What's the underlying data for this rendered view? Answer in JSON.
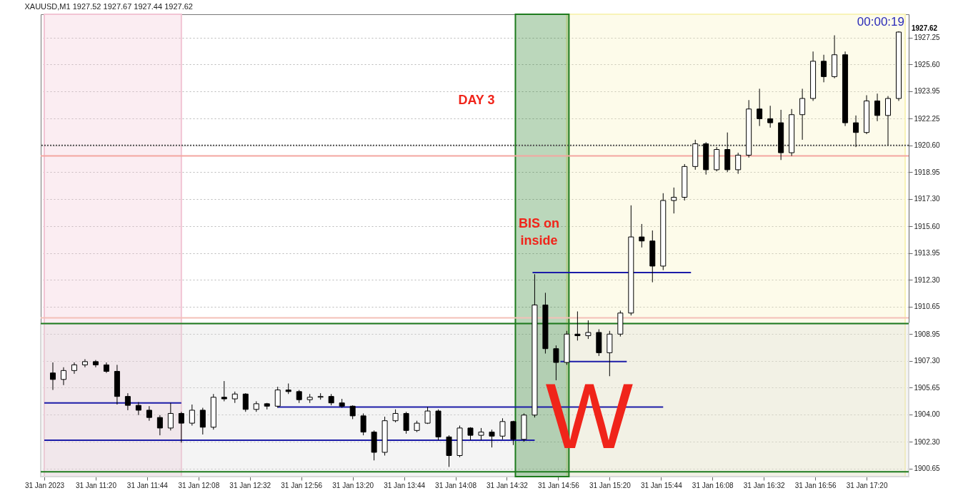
{
  "chart_data": {
    "type": "candlestick",
    "title": "XAUUSD,M1 1927.52 1927.67 1927.44 1927.62",
    "x": [
      "2023-01-31T11:00",
      "2023-01-31T11:05",
      "2023-01-31T11:10",
      "2023-01-31T11:15",
      "2023-01-31T11:20",
      "2023-01-31T11:25",
      "2023-01-31T11:30",
      "2023-01-31T11:35",
      "2023-01-31T11:40",
      "2023-01-31T11:45",
      "2023-01-31T11:50",
      "2023-01-31T11:55",
      "2023-01-31T12:00",
      "2023-01-31T12:05",
      "2023-01-31T12:10",
      "2023-01-31T12:15",
      "2023-01-31T12:20",
      "2023-01-31T12:25",
      "2023-01-31T12:30",
      "2023-01-31T12:35",
      "2023-01-31T12:40",
      "2023-01-31T12:45",
      "2023-01-31T12:50",
      "2023-01-31T12:55",
      "2023-01-31T13:00",
      "2023-01-31T13:05",
      "2023-01-31T13:10",
      "2023-01-31T13:15",
      "2023-01-31T13:20",
      "2023-01-31T13:25",
      "2023-01-31T13:30",
      "2023-01-31T13:35",
      "2023-01-31T13:40",
      "2023-01-31T13:45",
      "2023-01-31T13:50",
      "2023-01-31T13:55",
      "2023-01-31T14:00",
      "2023-01-31T14:05",
      "2023-01-31T14:10",
      "2023-01-31T14:15",
      "2023-01-31T14:20",
      "2023-01-31T14:25",
      "2023-01-31T14:30",
      "2023-01-31T14:35",
      "2023-01-31T14:40",
      "2023-01-31T14:45",
      "2023-01-31T14:50",
      "2023-01-31T14:55",
      "2023-01-31T15:00",
      "2023-01-31T15:05",
      "2023-01-31T15:10",
      "2023-01-31T15:15",
      "2023-01-31T15:20",
      "2023-01-31T15:25",
      "2023-01-31T15:30",
      "2023-01-31T15:35",
      "2023-01-31T15:40",
      "2023-01-31T15:45",
      "2023-01-31T15:50",
      "2023-01-31T15:55",
      "2023-01-31T16:00",
      "2023-01-31T16:05",
      "2023-01-31T16:10",
      "2023-01-31T16:15",
      "2023-01-31T16:20",
      "2023-01-31T16:25",
      "2023-01-31T16:30",
      "2023-01-31T16:35",
      "2023-01-31T16:40",
      "2023-01-31T16:45",
      "2023-01-31T16:50",
      "2023-01-31T16:55",
      "2023-01-31T17:00",
      "2023-01-31T17:05",
      "2023-01-31T17:10",
      "2023-01-31T17:15",
      "2023-01-31T17:20",
      "2023-01-31T17:25",
      "2023-01-31T17:30",
      "2023-01-31T17:35"
    ],
    "ohlc": [
      [
        1906.55,
        1907.2,
        1905.5,
        1906.15
      ],
      [
        1906.15,
        1906.9,
        1905.8,
        1906.7
      ],
      [
        1906.7,
        1907.2,
        1906.5,
        1907.05
      ],
      [
        1907.05,
        1907.4,
        1906.9,
        1907.25
      ],
      [
        1907.25,
        1907.35,
        1906.9,
        1907.05
      ],
      [
        1907.05,
        1907.2,
        1906.55,
        1906.65
      ],
      [
        1906.65,
        1907.05,
        1904.6,
        1905.1
      ],
      [
        1905.1,
        1905.3,
        1904.25,
        1904.55
      ],
      [
        1904.55,
        1904.75,
        1903.95,
        1904.25
      ],
      [
        1904.25,
        1904.5,
        1903.6,
        1903.8
      ],
      [
        1903.8,
        1903.95,
        1902.7,
        1903.15
      ],
      [
        1903.15,
        1904.7,
        1903.0,
        1904.05
      ],
      [
        1904.05,
        1904.15,
        1902.25,
        1903.45
      ],
      [
        1903.45,
        1904.6,
        1903.3,
        1904.25
      ],
      [
        1904.25,
        1904.4,
        1902.75,
        1903.2
      ],
      [
        1903.2,
        1905.25,
        1903.05,
        1905.05
      ],
      [
        1905.05,
        1906.05,
        1904.8,
        1904.95
      ],
      [
        1904.95,
        1905.4,
        1904.7,
        1905.25
      ],
      [
        1905.25,
        1905.3,
        1904.15,
        1904.3
      ],
      [
        1904.3,
        1904.8,
        1904.15,
        1904.65
      ],
      [
        1904.65,
        1904.7,
        1904.3,
        1904.5
      ],
      [
        1904.5,
        1905.7,
        1904.4,
        1905.5
      ],
      [
        1905.5,
        1905.9,
        1905.25,
        1905.4
      ],
      [
        1905.4,
        1905.5,
        1904.7,
        1904.9
      ],
      [
        1904.9,
        1905.25,
        1904.7,
        1905.05
      ],
      [
        1905.05,
        1905.3,
        1904.9,
        1905.1
      ],
      [
        1905.1,
        1905.25,
        1904.55,
        1904.7
      ],
      [
        1904.7,
        1904.95,
        1904.4,
        1904.5
      ],
      [
        1904.5,
        1904.55,
        1903.7,
        1903.9
      ],
      [
        1903.9,
        1904.05,
        1902.7,
        1902.9
      ],
      [
        1902.9,
        1903.0,
        1901.15,
        1901.65
      ],
      [
        1901.65,
        1903.85,
        1901.45,
        1903.6
      ],
      [
        1903.6,
        1904.3,
        1903.5,
        1904.05
      ],
      [
        1904.05,
        1904.15,
        1902.8,
        1903.0
      ],
      [
        1903.0,
        1903.6,
        1902.9,
        1903.45
      ],
      [
        1903.45,
        1904.45,
        1903.4,
        1904.2
      ],
      [
        1904.2,
        1904.3,
        1902.4,
        1902.6
      ],
      [
        1902.6,
        1902.7,
        1900.75,
        1901.45
      ],
      [
        1901.45,
        1903.3,
        1901.35,
        1903.15
      ],
      [
        1903.15,
        1903.2,
        1902.4,
        1902.7
      ],
      [
        1902.7,
        1903.15,
        1902.4,
        1902.9
      ],
      [
        1902.9,
        1903.05,
        1901.95,
        1902.65
      ],
      [
        1902.65,
        1903.75,
        1902.45,
        1903.55
      ],
      [
        1903.55,
        1903.6,
        1902.1,
        1902.45
      ],
      [
        1902.45,
        1904.05,
        1902.3,
        1903.95
      ],
      [
        1903.95,
        1912.65,
        1903.8,
        1910.75
      ],
      [
        1910.75,
        1911.5,
        1907.75,
        1908.05
      ],
      [
        1908.05,
        1908.25,
        1906.1,
        1907.2
      ],
      [
        1907.2,
        1909.15,
        1907.05,
        1908.95
      ],
      [
        1908.95,
        1910.35,
        1908.55,
        1908.85
      ],
      [
        1908.85,
        1909.8,
        1908.65,
        1909.05
      ],
      [
        1909.05,
        1909.25,
        1907.6,
        1907.8
      ],
      [
        1907.8,
        1909.15,
        1906.35,
        1908.95
      ],
      [
        1908.95,
        1910.4,
        1908.8,
        1910.25
      ],
      [
        1910.25,
        1916.9,
        1910.1,
        1914.95
      ],
      [
        1914.95,
        1915.75,
        1914.3,
        1914.7
      ],
      [
        1914.7,
        1915.35,
        1912.15,
        1913.15
      ],
      [
        1913.15,
        1917.65,
        1912.9,
        1917.2
      ],
      [
        1917.2,
        1918.0,
        1916.4,
        1917.4
      ],
      [
        1917.4,
        1919.45,
        1917.2,
        1919.3
      ],
      [
        1919.3,
        1920.95,
        1919.1,
        1920.7
      ],
      [
        1920.7,
        1920.8,
        1918.8,
        1919.1
      ],
      [
        1919.1,
        1920.5,
        1919.0,
        1920.35
      ],
      [
        1920.35,
        1921.4,
        1918.95,
        1919.1
      ],
      [
        1919.1,
        1920.15,
        1918.85,
        1920.0
      ],
      [
        1920.0,
        1923.4,
        1919.85,
        1922.85
      ],
      [
        1922.85,
        1924.1,
        1921.8,
        1922.25
      ],
      [
        1922.25,
        1923.05,
        1921.7,
        1922.0
      ],
      [
        1922.0,
        1922.8,
        1919.7,
        1920.15
      ],
      [
        1920.15,
        1922.85,
        1919.95,
        1922.5
      ],
      [
        1922.5,
        1924.1,
        1920.95,
        1923.5
      ],
      [
        1923.5,
        1926.4,
        1923.35,
        1925.8
      ],
      [
        1925.8,
        1926.2,
        1924.5,
        1924.85
      ],
      [
        1924.85,
        1927.4,
        1924.75,
        1926.2
      ],
      [
        1926.2,
        1926.4,
        1921.8,
        1922.0
      ],
      [
        1922.0,
        1922.45,
        1920.5,
        1921.4
      ],
      [
        1921.4,
        1923.7,
        1921.3,
        1923.35
      ],
      [
        1923.35,
        1923.8,
        1922.1,
        1922.45
      ],
      [
        1922.45,
        1923.65,
        1920.6,
        1923.5
      ],
      [
        1923.5,
        1927.65,
        1923.35,
        1927.6
      ]
    ],
    "series": [
      {
        "type": "line",
        "color": "#1c1ca8",
        "x": [
          "2023-01-31T10:56",
          "2023-01-31T12:00"
        ],
        "values": [
          1904.7,
          1904.7
        ]
      },
      {
        "type": "line",
        "color": "#1c1ca8",
        "x": [
          "2023-01-31T10:56",
          "2023-01-31T14:45"
        ],
        "values": [
          1902.4,
          1902.4
        ]
      },
      {
        "type": "line",
        "color": "#1c1ca8",
        "x": [
          "2023-01-31T12:45",
          "2023-01-31T15:45"
        ],
        "values": [
          1904.45,
          1904.45
        ]
      },
      {
        "type": "line",
        "color": "#1c1ca8",
        "x": [
          "2023-01-31T14:44",
          "2023-01-31T15:58"
        ],
        "values": [
          1912.75,
          1912.75
        ]
      },
      {
        "type": "line",
        "color": "#1c1ca8",
        "x": [
          "2023-01-31T14:57",
          "2023-01-31T15:28"
        ],
        "values": [
          1907.25,
          1907.25
        ]
      }
    ],
    "xlim": [
      "2023-01-31T10:56",
      "2023-01-31T17:38"
    ],
    "xticks": [
      {
        "value": "2023-01-31T10:56",
        "label": "31 Jan 2023"
      },
      {
        "value": "2023-01-31T11:20",
        "label": "31 Jan 11:20"
      },
      {
        "value": "2023-01-31T11:44",
        "label": "31 Jan 11:44"
      },
      {
        "value": "2023-01-31T12:08",
        "label": "31 Jan 12:08"
      },
      {
        "value": "2023-01-31T12:32",
        "label": "31 Jan 12:32"
      },
      {
        "value": "2023-01-31T12:56",
        "label": "31 Jan 12:56"
      },
      {
        "value": "2023-01-31T13:20",
        "label": "31 Jan 13:20"
      },
      {
        "value": "2023-01-31T13:44",
        "label": "31 Jan 13:44"
      },
      {
        "value": "2023-01-31T14:08",
        "label": "31 Jan 14:08"
      },
      {
        "value": "2023-01-31T14:32",
        "label": "31 Jan 14:32"
      },
      {
        "value": "2023-01-31T14:56",
        "label": "31 Jan 14:56"
      },
      {
        "value": "2023-01-31T15:20",
        "label": "31 Jan 15:20"
      },
      {
        "value": "2023-01-31T15:44",
        "label": "31 Jan 15:44"
      },
      {
        "value": "2023-01-31T16:08",
        "label": "31 Jan 16:08"
      },
      {
        "value": "2023-01-31T16:32",
        "label": "31 Jan 16:32"
      },
      {
        "value": "2023-01-31T16:56",
        "label": "31 Jan 16:56"
      },
      {
        "value": "2023-01-31T17:20",
        "label": "31 Jan 17:20"
      }
    ],
    "ylim": [
      1900.15,
      1928.7
    ],
    "yticks": [
      1900.65,
      {
        "value": 1902.3,
        "label": "1902.30"
      },
      {
        "value": 1904,
        "label": "1904.00"
      },
      1905.65,
      {
        "value": 1907.3,
        "label": "1907.30"
      },
      1908.95,
      1910.65,
      {
        "value": 1912.3,
        "label": "1912.30"
      },
      1913.95,
      {
        "value": 1915.6,
        "label": "1915.60"
      },
      {
        "value": 1917.3,
        "label": "1917.30"
      },
      1918.95,
      {
        "value": 1920.6,
        "label": "1920.60"
      },
      1922.25,
      1923.95,
      {
        "value": 1925.6,
        "label": "1925.60"
      },
      1927.25
    ],
    "grid": "y",
    "bands": [
      {
        "axis": "x",
        "from": "2023-01-31T10:56",
        "to": "2023-01-31T12:00",
        "color": "#f2c4d4"
      },
      {
        "axis": "x",
        "from": "2023-01-31T15:00",
        "to": "2023-01-31T17:38",
        "color": "#f8f3b8"
      },
      {
        "axis": "y",
        "from": 1900.15,
        "to": 1909.6,
        "color": "#d9d9d9"
      },
      {
        "axis": "x",
        "from": "2023-01-31T14:36",
        "to": "2023-01-31T15:01",
        "color": "#1e7b1e"
      }
    ],
    "ref_lines": [
      {
        "axis": "y",
        "value": 1909.6,
        "color": "#1e7b1e"
      },
      {
        "axis": "y",
        "value": 1900.45,
        "color": "#1e7b1e"
      },
      {
        "axis": "y",
        "value": 1919.95,
        "color": "#f4a6a0"
      },
      {
        "axis": "y",
        "value": 1909.95,
        "color": "#f4c0b8"
      },
      {
        "axis": "y",
        "value": 1920.6,
        "color": "#555555",
        "line_style": "dotted"
      }
    ],
    "annotations": [
      "00:00:19",
      "DAY 3",
      "BIS on\ninside",
      "W",
      {
        "text": "1927.62",
        "x": "2023-01-31T17:38",
        "y": 1927.62
      }
    ]
  }
}
